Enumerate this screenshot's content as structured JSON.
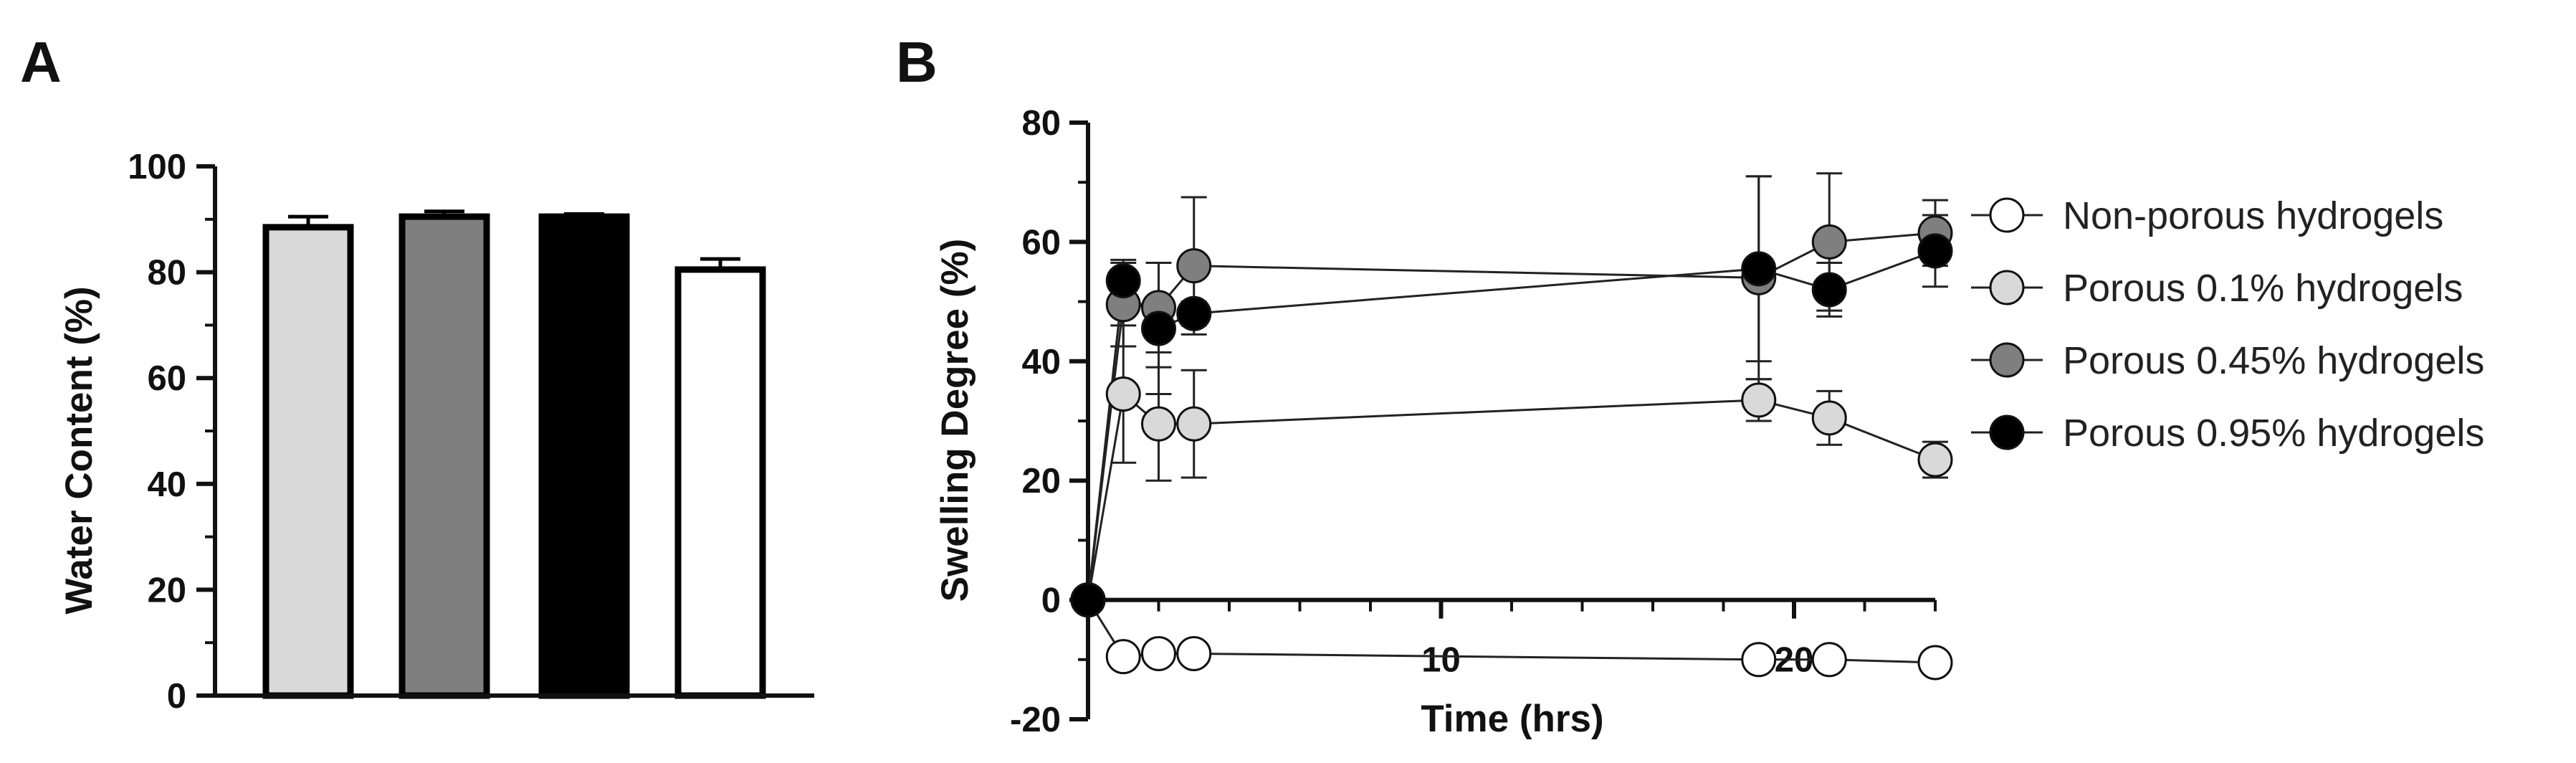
{
  "chart_data": [
    {
      "panel": "A",
      "type": "bar",
      "ylabel": "Water Content (%)",
      "ylim": [
        0,
        100
      ],
      "yticks": [
        0,
        20,
        40,
        60,
        80,
        100
      ],
      "bars": [
        {
          "value": 88.5,
          "error": 2,
          "color": "#d9d9d9"
        },
        {
          "value": 90.5,
          "error": 1,
          "color": "#7f7f7f"
        },
        {
          "value": 90.5,
          "error": 0.5,
          "color": "#000000"
        },
        {
          "value": 80.5,
          "error": 2,
          "color": "#ffffff"
        }
      ]
    },
    {
      "panel": "B",
      "type": "line",
      "xlabel": "Time (hrs)",
      "ylabel": "Swelling Degree (%)",
      "xlim": [
        0,
        24
      ],
      "ylim": [
        -20,
        80
      ],
      "xticks": [
        10,
        20
      ],
      "yticks": [
        -20,
        0,
        20,
        40,
        60,
        80
      ],
      "legend_position": "right",
      "series": [
        {
          "name": "Non-porous hydrogels",
          "color": "#ffffff",
          "x": [
            0,
            1,
            2,
            3,
            19,
            21,
            24
          ],
          "y": [
            0,
            -9.5,
            -9,
            -9,
            -10,
            -10,
            -10.5
          ],
          "err": [
            0,
            0,
            0,
            0,
            0,
            0,
            0
          ]
        },
        {
          "name": "Porous 0.1% hydrogels",
          "color": "#d9d9d9",
          "x": [
            0,
            1,
            2,
            3,
            19,
            21,
            24
          ],
          "y": [
            0,
            34.5,
            29.5,
            29.5,
            33.5,
            30.5,
            23.5
          ],
          "err": [
            0,
            11.5,
            9.5,
            9,
            3.5,
            4.5,
            3
          ]
        },
        {
          "name": "Porous 0.45% hydrogels",
          "color": "#7f7f7f",
          "x": [
            0,
            1,
            2,
            3,
            19,
            21,
            24
          ],
          "y": [
            0,
            49.5,
            49,
            56,
            54,
            60,
            61.5
          ],
          "err": [
            0,
            7,
            7.5,
            11.5,
            17,
            11.5,
            5.5
          ]
        },
        {
          "name": "Porous 0.95% hydrogels",
          "color": "#000000",
          "x": [
            0,
            1,
            2,
            3,
            19,
            21,
            24
          ],
          "y": [
            0,
            53.5,
            45.5,
            48,
            55.5,
            52,
            58.5
          ],
          "err": [
            0,
            3.5,
            11,
            2,
            15.5,
            4.5,
            6
          ]
        }
      ]
    }
  ]
}
